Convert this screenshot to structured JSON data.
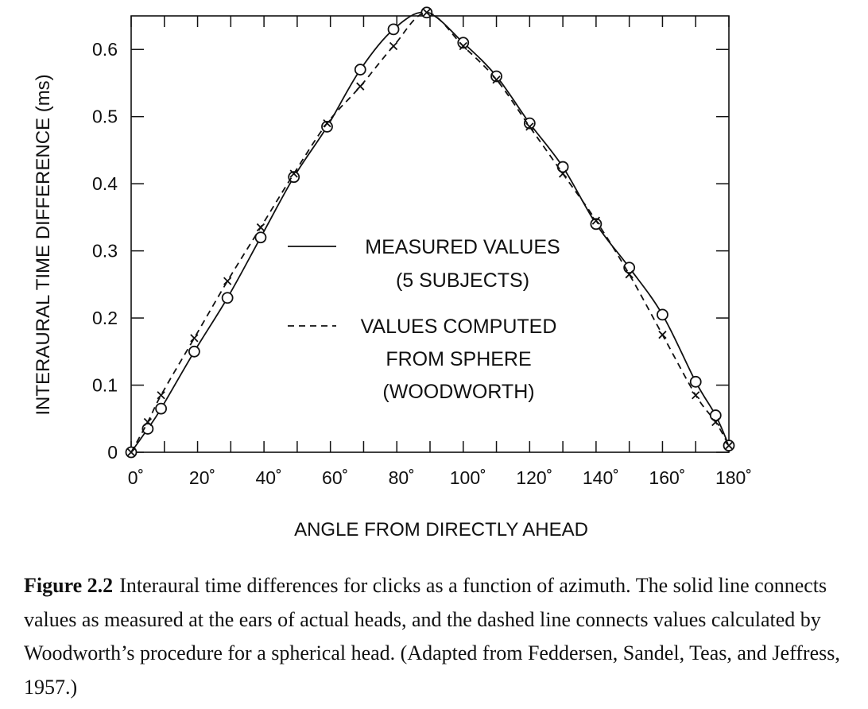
{
  "chart_data": {
    "type": "line",
    "xlabel": "ANGLE FROM DIRECTLY AHEAD",
    "ylabel": "INTERAURAL TIME DIFFERENCE (ms)",
    "xlim": [
      0,
      180
    ],
    "ylim": [
      0,
      0.65
    ],
    "x_ticks": [
      0,
      20,
      40,
      60,
      80,
      100,
      120,
      140,
      160,
      180
    ],
    "x_tick_labels": [
      "0˚",
      "20˚",
      "40˚",
      "60˚",
      "80˚",
      "100˚",
      "120˚",
      "140˚",
      "160˚",
      "180˚"
    ],
    "y_ticks": [
      0,
      0.1,
      0.2,
      0.3,
      0.4,
      0.5,
      0.6
    ],
    "y_tick_labels": [
      "0",
      "0.1",
      "0.2",
      "0.3",
      "0.4",
      "0.5",
      "0.6"
    ],
    "grid": false,
    "legend_position": "center",
    "series": [
      {
        "name_lines": [
          "MEASURED VALUES",
          "(5 SUBJECTS)"
        ],
        "line_style": "solid",
        "marker": "circle",
        "x": [
          0,
          5,
          9,
          19,
          29,
          39,
          49,
          59,
          69,
          79,
          89,
          100,
          110,
          120,
          130,
          140,
          150,
          160,
          170,
          176,
          180
        ],
        "y": [
          0.0,
          0.035,
          0.065,
          0.15,
          0.23,
          0.32,
          0.41,
          0.485,
          0.57,
          0.63,
          0.655,
          0.61,
          0.56,
          0.49,
          0.425,
          0.34,
          0.275,
          0.205,
          0.105,
          0.055,
          0.01
        ]
      },
      {
        "name_lines": [
          "VALUES COMPUTED",
          "FROM SPHERE",
          "(WOODWORTH)"
        ],
        "line_style": "dashed",
        "marker": "x",
        "x": [
          0,
          5,
          9,
          19,
          29,
          39,
          49,
          59,
          69,
          79,
          89,
          100,
          110,
          120,
          130,
          140,
          150,
          160,
          170,
          176,
          180
        ],
        "y": [
          0.0,
          0.045,
          0.085,
          0.17,
          0.255,
          0.335,
          0.415,
          0.49,
          0.545,
          0.605,
          0.655,
          0.605,
          0.555,
          0.485,
          0.415,
          0.345,
          0.265,
          0.175,
          0.085,
          0.045,
          0.01
        ]
      }
    ]
  },
  "caption": {
    "label": "Figure 2.2",
    "text": "Interaural time differences for clicks as a function of azimuth. The solid line connects values as measured at the ears of actual heads, and the dashed line connects values calculated by Woodworth’s procedure for a spherical head. (Adapted from Feddersen, Sandel, Teas, and Jeffress, 1957.)"
  }
}
